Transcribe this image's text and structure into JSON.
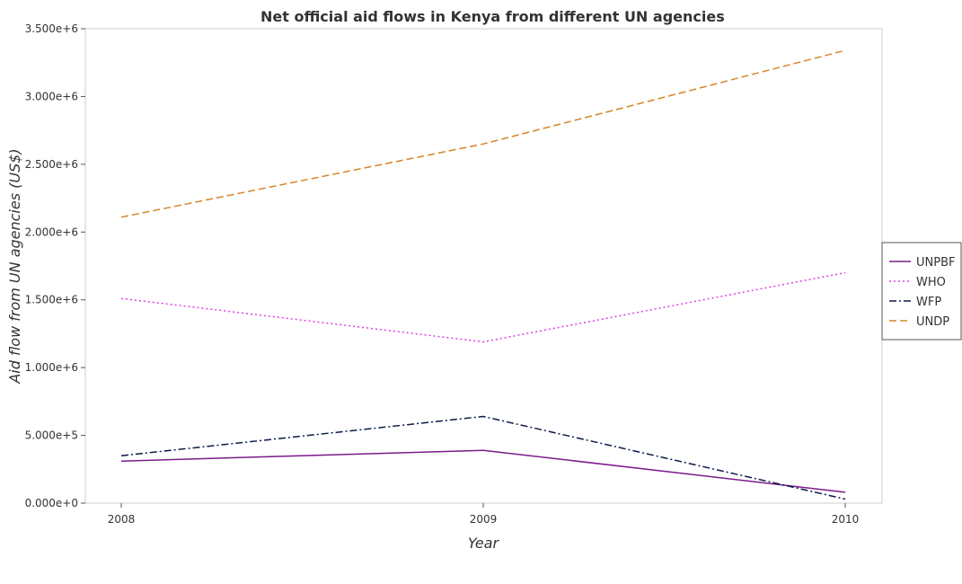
{
  "chart_data": {
    "type": "line",
    "title": "Net official aid flows in Kenya from different UN agencies",
    "xlabel": "Year",
    "ylabel": "Aid flow from UN agencies (US$)",
    "categories": [
      "2008",
      "2009",
      "2010"
    ],
    "ylim": [
      0,
      3500000
    ],
    "yticks": [
      0,
      500000,
      1000000,
      1500000,
      2000000,
      2500000,
      3000000,
      3500000
    ],
    "ytick_labels": [
      "0.000e+0",
      "5.000e+5",
      "1.000e+6",
      "1.500e+6",
      "2.000e+6",
      "2.500e+6",
      "3.000e+6",
      "3.500e+6"
    ],
    "grid": false,
    "legend_position": "right",
    "series": [
      {
        "name": "UNPBF",
        "color": "#7b1a8a",
        "dash": "solid",
        "values": [
          310000,
          390000,
          80000
        ]
      },
      {
        "name": "WHO",
        "color": "#e040e0",
        "dash": "dotted",
        "values": [
          1510000,
          1190000,
          1700000
        ]
      },
      {
        "name": "WFP",
        "color": "#0d1a4a",
        "dash": "dashdot",
        "values": [
          350000,
          640000,
          30000
        ]
      },
      {
        "name": "UNDP",
        "color": "#d4862a",
        "dash": "dashed",
        "values": [
          2110000,
          2650000,
          3340000
        ]
      }
    ]
  }
}
